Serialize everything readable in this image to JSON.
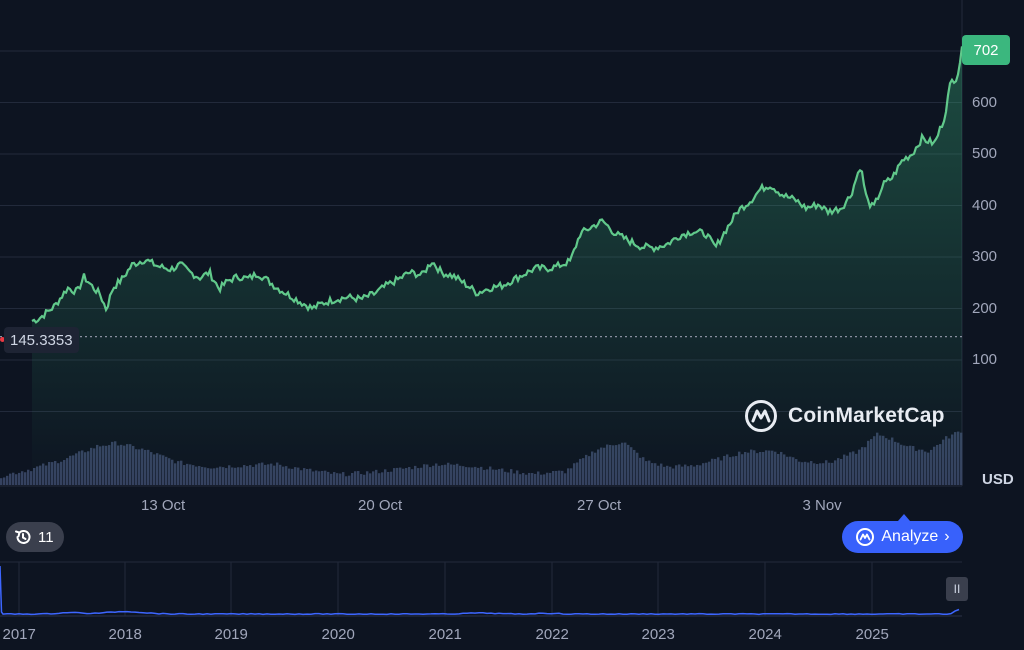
{
  "chart_data": {
    "type": "line",
    "currency_label": "USD",
    "brand": "CoinMarketCap",
    "colors": {
      "line": "#61c98b",
      "volume": "#3d4a6b",
      "navigator": "#3d66ff",
      "background": "#0d1421",
      "accent": "#3861fb"
    },
    "y_axis": {
      "ticks": [
        100,
        200,
        300,
        400,
        500,
        600
      ],
      "ylim": [
        0,
        720
      ]
    },
    "x_axis": {
      "ticks": [
        "13 Oct",
        "20 Oct",
        "27 Oct",
        "3 Nov"
      ]
    },
    "last_price_label": "702",
    "base_price_label": "145.3353",
    "base_price": 145.3353,
    "price_series": [
      [
        0,
        160
      ],
      [
        0.8,
        172
      ],
      [
        1.2,
        180
      ],
      [
        1.7,
        205
      ],
      [
        2.1,
        240
      ],
      [
        2.4,
        232
      ],
      [
        2.6,
        262
      ],
      [
        2.9,
        240
      ],
      [
        3.1,
        228
      ],
      [
        3.3,
        198
      ],
      [
        3.5,
        240
      ],
      [
        3.8,
        258
      ],
      [
        4.1,
        285
      ],
      [
        4.5,
        295
      ],
      [
        4.9,
        282
      ],
      [
        5.3,
        276
      ],
      [
        5.6,
        285
      ],
      [
        5.9,
        270
      ],
      [
        6.2,
        260
      ],
      [
        6.5,
        270
      ],
      [
        6.8,
        238
      ],
      [
        7.1,
        255
      ],
      [
        7.4,
        262
      ],
      [
        7.7,
        258
      ],
      [
        8.0,
        268
      ],
      [
        8.3,
        255
      ],
      [
        8.6,
        240
      ],
      [
        9.0,
        225
      ],
      [
        9.4,
        210
      ],
      [
        9.7,
        200
      ],
      [
        10.0,
        210
      ],
      [
        10.4,
        218
      ],
      [
        10.8,
        222
      ],
      [
        11.2,
        218
      ],
      [
        11.6,
        228
      ],
      [
        12.0,
        245
      ],
      [
        12.4,
        258
      ],
      [
        12.7,
        270
      ],
      [
        13.1,
        265
      ],
      [
        13.4,
        292
      ],
      [
        13.7,
        270
      ],
      [
        14.1,
        262
      ],
      [
        14.5,
        245
      ],
      [
        14.8,
        230
      ],
      [
        15.2,
        240
      ],
      [
        15.6,
        245
      ],
      [
        15.9,
        255
      ],
      [
        16.3,
        268
      ],
      [
        16.6,
        278
      ],
      [
        17.0,
        278
      ],
      [
        17.3,
        282
      ],
      [
        17.7,
        292
      ],
      [
        18.0,
        345
      ],
      [
        18.4,
        360
      ],
      [
        18.7,
        370
      ],
      [
        19.1,
        345
      ],
      [
        19.5,
        332
      ],
      [
        19.9,
        320
      ],
      [
        20.3,
        318
      ],
      [
        20.7,
        325
      ],
      [
        21.1,
        342
      ],
      [
        21.5,
        350
      ],
      [
        21.9,
        345
      ],
      [
        22.2,
        318
      ],
      [
        22.5,
        350
      ],
      [
        22.9,
        390
      ],
      [
        23.3,
        410
      ],
      [
        23.6,
        432
      ],
      [
        23.9,
        440
      ],
      [
        24.3,
        420
      ],
      [
        24.7,
        410
      ],
      [
        25.0,
        395
      ],
      [
        25.4,
        402
      ],
      [
        25.7,
        388
      ],
      [
        26.1,
        395
      ],
      [
        26.4,
        420
      ],
      [
        26.7,
        478
      ],
      [
        26.9,
        410
      ],
      [
        27.1,
        395
      ],
      [
        27.4,
        440
      ],
      [
        27.7,
        455
      ],
      [
        28.0,
        488
      ],
      [
        28.3,
        500
      ],
      [
        28.6,
        530
      ],
      [
        29.0,
        520
      ],
      [
        29.3,
        570
      ],
      [
        29.5,
        640
      ],
      [
        29.7,
        650
      ],
      [
        29.85,
        702
      ]
    ],
    "volume_note": "relative volume bars",
    "volume_series": [
      [
        0,
        0.12
      ],
      [
        1,
        0.22
      ],
      [
        2,
        0.35
      ],
      [
        3,
        0.52
      ],
      [
        3.6,
        0.56
      ],
      [
        4.5,
        0.46
      ],
      [
        5.5,
        0.3
      ],
      [
        6.5,
        0.24
      ],
      [
        7.5,
        0.26
      ],
      [
        8.5,
        0.28
      ],
      [
        9.5,
        0.2
      ],
      [
        10.5,
        0.14
      ],
      [
        11.5,
        0.17
      ],
      [
        12.5,
        0.22
      ],
      [
        13.5,
        0.28
      ],
      [
        14.5,
        0.26
      ],
      [
        15.5,
        0.2
      ],
      [
        16.5,
        0.15
      ],
      [
        17.5,
        0.18
      ],
      [
        18.5,
        0.48
      ],
      [
        19.3,
        0.58
      ],
      [
        20,
        0.32
      ],
      [
        20.7,
        0.24
      ],
      [
        21.5,
        0.26
      ],
      [
        22.3,
        0.35
      ],
      [
        23,
        0.44
      ],
      [
        24,
        0.46
      ],
      [
        24.8,
        0.32
      ],
      [
        25.7,
        0.3
      ],
      [
        26.6,
        0.45
      ],
      [
        27.2,
        0.68
      ],
      [
        27.6,
        0.62
      ],
      [
        28.2,
        0.5
      ],
      [
        28.8,
        0.45
      ],
      [
        29.3,
        0.62
      ],
      [
        29.85,
        0.74
      ]
    ],
    "navigator": {
      "ticks": [
        "2017",
        "2018",
        "2019",
        "2020",
        "2021",
        "2022",
        "2023",
        "2024",
        "2025"
      ]
    }
  },
  "controls": {
    "history_count": "11",
    "analyze_label": "Analyze",
    "pause_label": "II"
  }
}
